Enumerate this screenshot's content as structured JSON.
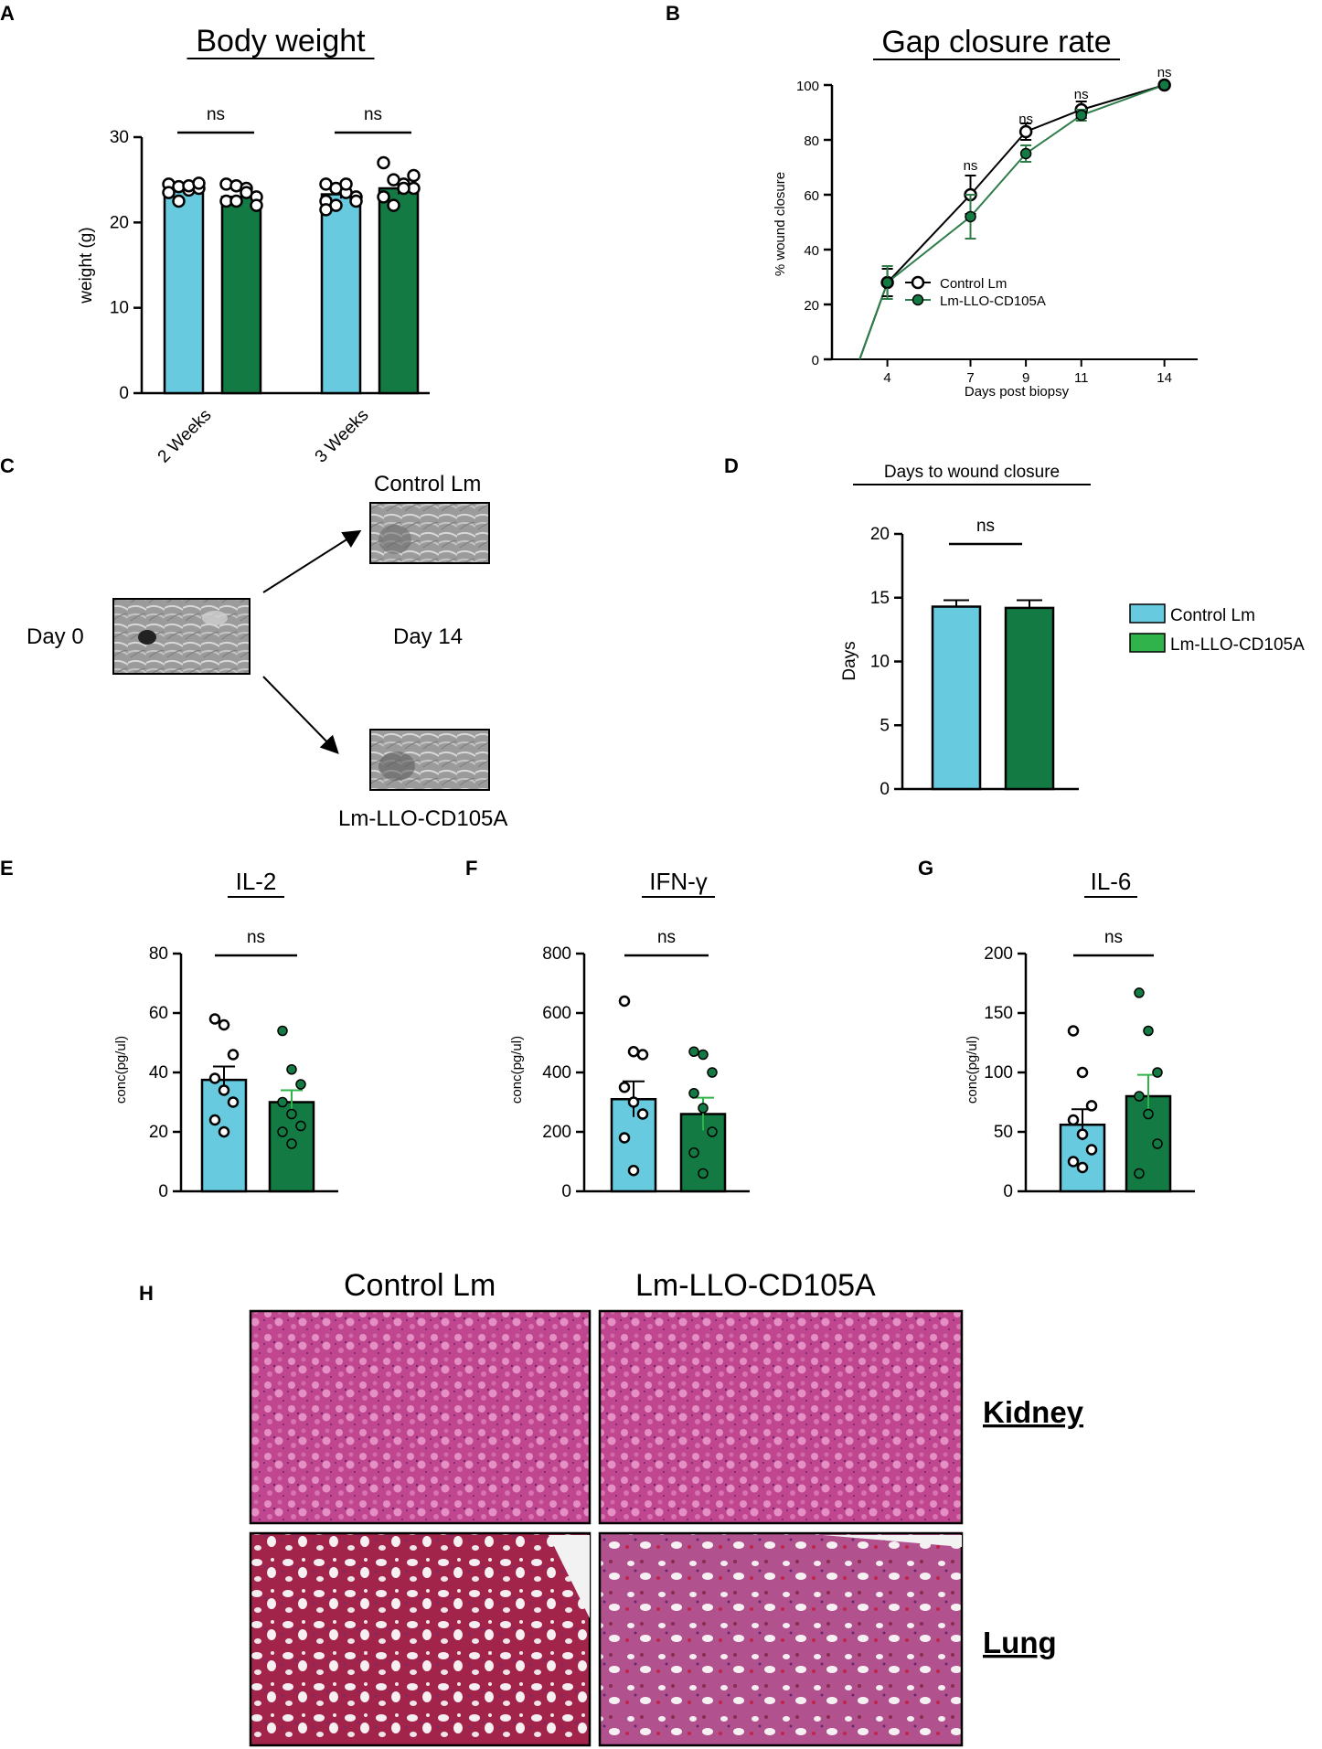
{
  "colors": {
    "control": "#67cadf",
    "treated": "#147a44",
    "treated_line": "#2f7d4a",
    "axis": "#000000",
    "tissue": "#c24b94",
    "tissue_dark": "#7a2c6c",
    "lung_red": "#b51f3f"
  },
  "labels": {
    "a": "A",
    "b": "B",
    "c": "C",
    "d": "D",
    "e": "E",
    "f": "F",
    "g": "G",
    "h": "H"
  },
  "chart_data": [
    {
      "id": "A",
      "type": "bar",
      "title": "Body weight",
      "ylabel": "weight (g)",
      "ylim": [
        0,
        30
      ],
      "yticks": [
        "0",
        "10",
        "20",
        "30"
      ],
      "categories": [
        "2 Weeks",
        "3 Weeks"
      ],
      "series": [
        {
          "values": [
            24.0,
            23.3
          ],
          "sem": [
            0.4,
            0.5
          ]
        },
        {
          "values": [
            23.0,
            24.0
          ],
          "sem": [
            0.5,
            0.7
          ]
        }
      ],
      "points": [
        [
          [
            24.5,
            24.2,
            23.8,
            24.0,
            23.5,
            22.5,
            24.3,
            24.6
          ],
          [
            24.5,
            24.3,
            24.0,
            23.0,
            22.5,
            22.5,
            23.5,
            22.0
          ]
        ],
        [
          [
            24.5,
            24.0,
            23.5,
            23.0,
            22.5,
            22.0,
            24.5,
            22.5,
            21.5
          ],
          [
            27.0,
            25.0,
            24.5,
            24.0,
            23.0,
            22.0,
            24.0,
            25.5
          ]
        ]
      ],
      "annotations": [
        "ns",
        "ns"
      ]
    },
    {
      "id": "B",
      "type": "line",
      "title": "Gap closure rate",
      "xlabel": "Days post biopsy",
      "ylabel": "% wound closure",
      "ylim": [
        0,
        100
      ],
      "yticks": [
        "0",
        "20",
        "40",
        "60",
        "80",
        "100"
      ],
      "x": [
        4,
        7,
        9,
        11,
        14
      ],
      "xticks": [
        "4",
        "7",
        "9",
        "11",
        "14"
      ],
      "series": [
        {
          "name": "Control Lm",
          "values": [
            28,
            60,
            83,
            91,
            100
          ],
          "sem": [
            5,
            7,
            3,
            3,
            0
          ]
        },
        {
          "name": "Lm-LLO-CD105A",
          "values": [
            28,
            52,
            75,
            89,
            100
          ],
          "sem": [
            6,
            8,
            3,
            2,
            0
          ]
        }
      ],
      "annotations": [
        "ns",
        "ns",
        "ns",
        "ns"
      ]
    },
    {
      "id": "D",
      "type": "bar",
      "title": "Days to wound closure",
      "ylabel": "Days",
      "ylim": [
        0,
        20
      ],
      "yticks": [
        "0",
        "5",
        "10",
        "15",
        "20"
      ],
      "categories": [
        "Control Lm",
        "Lm-LLO-CD105A"
      ],
      "values": [
        14.3,
        14.2
      ],
      "sem": [
        0.5,
        0.6
      ],
      "legend": [
        "Control Lm",
        "Lm-LLO-CD105A"
      ],
      "annotation": "ns"
    },
    {
      "id": "E",
      "type": "bar",
      "title": "IL-2",
      "ylabel": "conc(pg/ul)",
      "ylim": [
        0,
        80
      ],
      "yticks": [
        "0",
        "20",
        "40",
        "60",
        "80"
      ],
      "values": [
        37.5,
        30.0
      ],
      "sem": [
        4.5,
        4.0
      ],
      "points": [
        [
          58,
          56,
          46,
          38,
          34,
          30,
          24,
          20
        ],
        [
          54,
          41,
          36,
          30,
          26,
          22,
          20,
          16
        ]
      ],
      "annotation": "ns"
    },
    {
      "id": "F",
      "type": "bar",
      "title": "IFN-γ",
      "ylabel": "conc(pg/ul)",
      "ylim": [
        0,
        800
      ],
      "yticks": [
        "0",
        "200",
        "400",
        "600",
        "800"
      ],
      "values": [
        310,
        260
      ],
      "sem": [
        60,
        55
      ],
      "points": [
        [
          640,
          470,
          460,
          350,
          300,
          260,
          180,
          70
        ],
        [
          470,
          460,
          400,
          330,
          280,
          200,
          130,
          60
        ]
      ],
      "annotation": "ns"
    },
    {
      "id": "G",
      "type": "bar",
      "title": "IL-6",
      "ylabel": "conc(pg/ul)",
      "ylim": [
        0,
        200
      ],
      "yticks": [
        "0",
        "50",
        "100",
        "150",
        "200"
      ],
      "values": [
        56,
        80
      ],
      "sem": [
        13,
        18
      ],
      "points": [
        [
          135,
          100,
          72,
          60,
          48,
          35,
          25,
          20
        ],
        [
          167,
          135,
          100,
          80,
          65,
          40,
          15
        ]
      ],
      "annotation": "ns"
    }
  ],
  "panel_c": {
    "day0": "Day 0",
    "day14": "Day 14",
    "top_label": "Control Lm",
    "bottom_label": "Lm-LLO-CD105A"
  },
  "panel_h": {
    "col1": "Control Lm",
    "col2": "Lm-LLO-CD105A",
    "row1": "Kidney",
    "row2": "Lung"
  }
}
